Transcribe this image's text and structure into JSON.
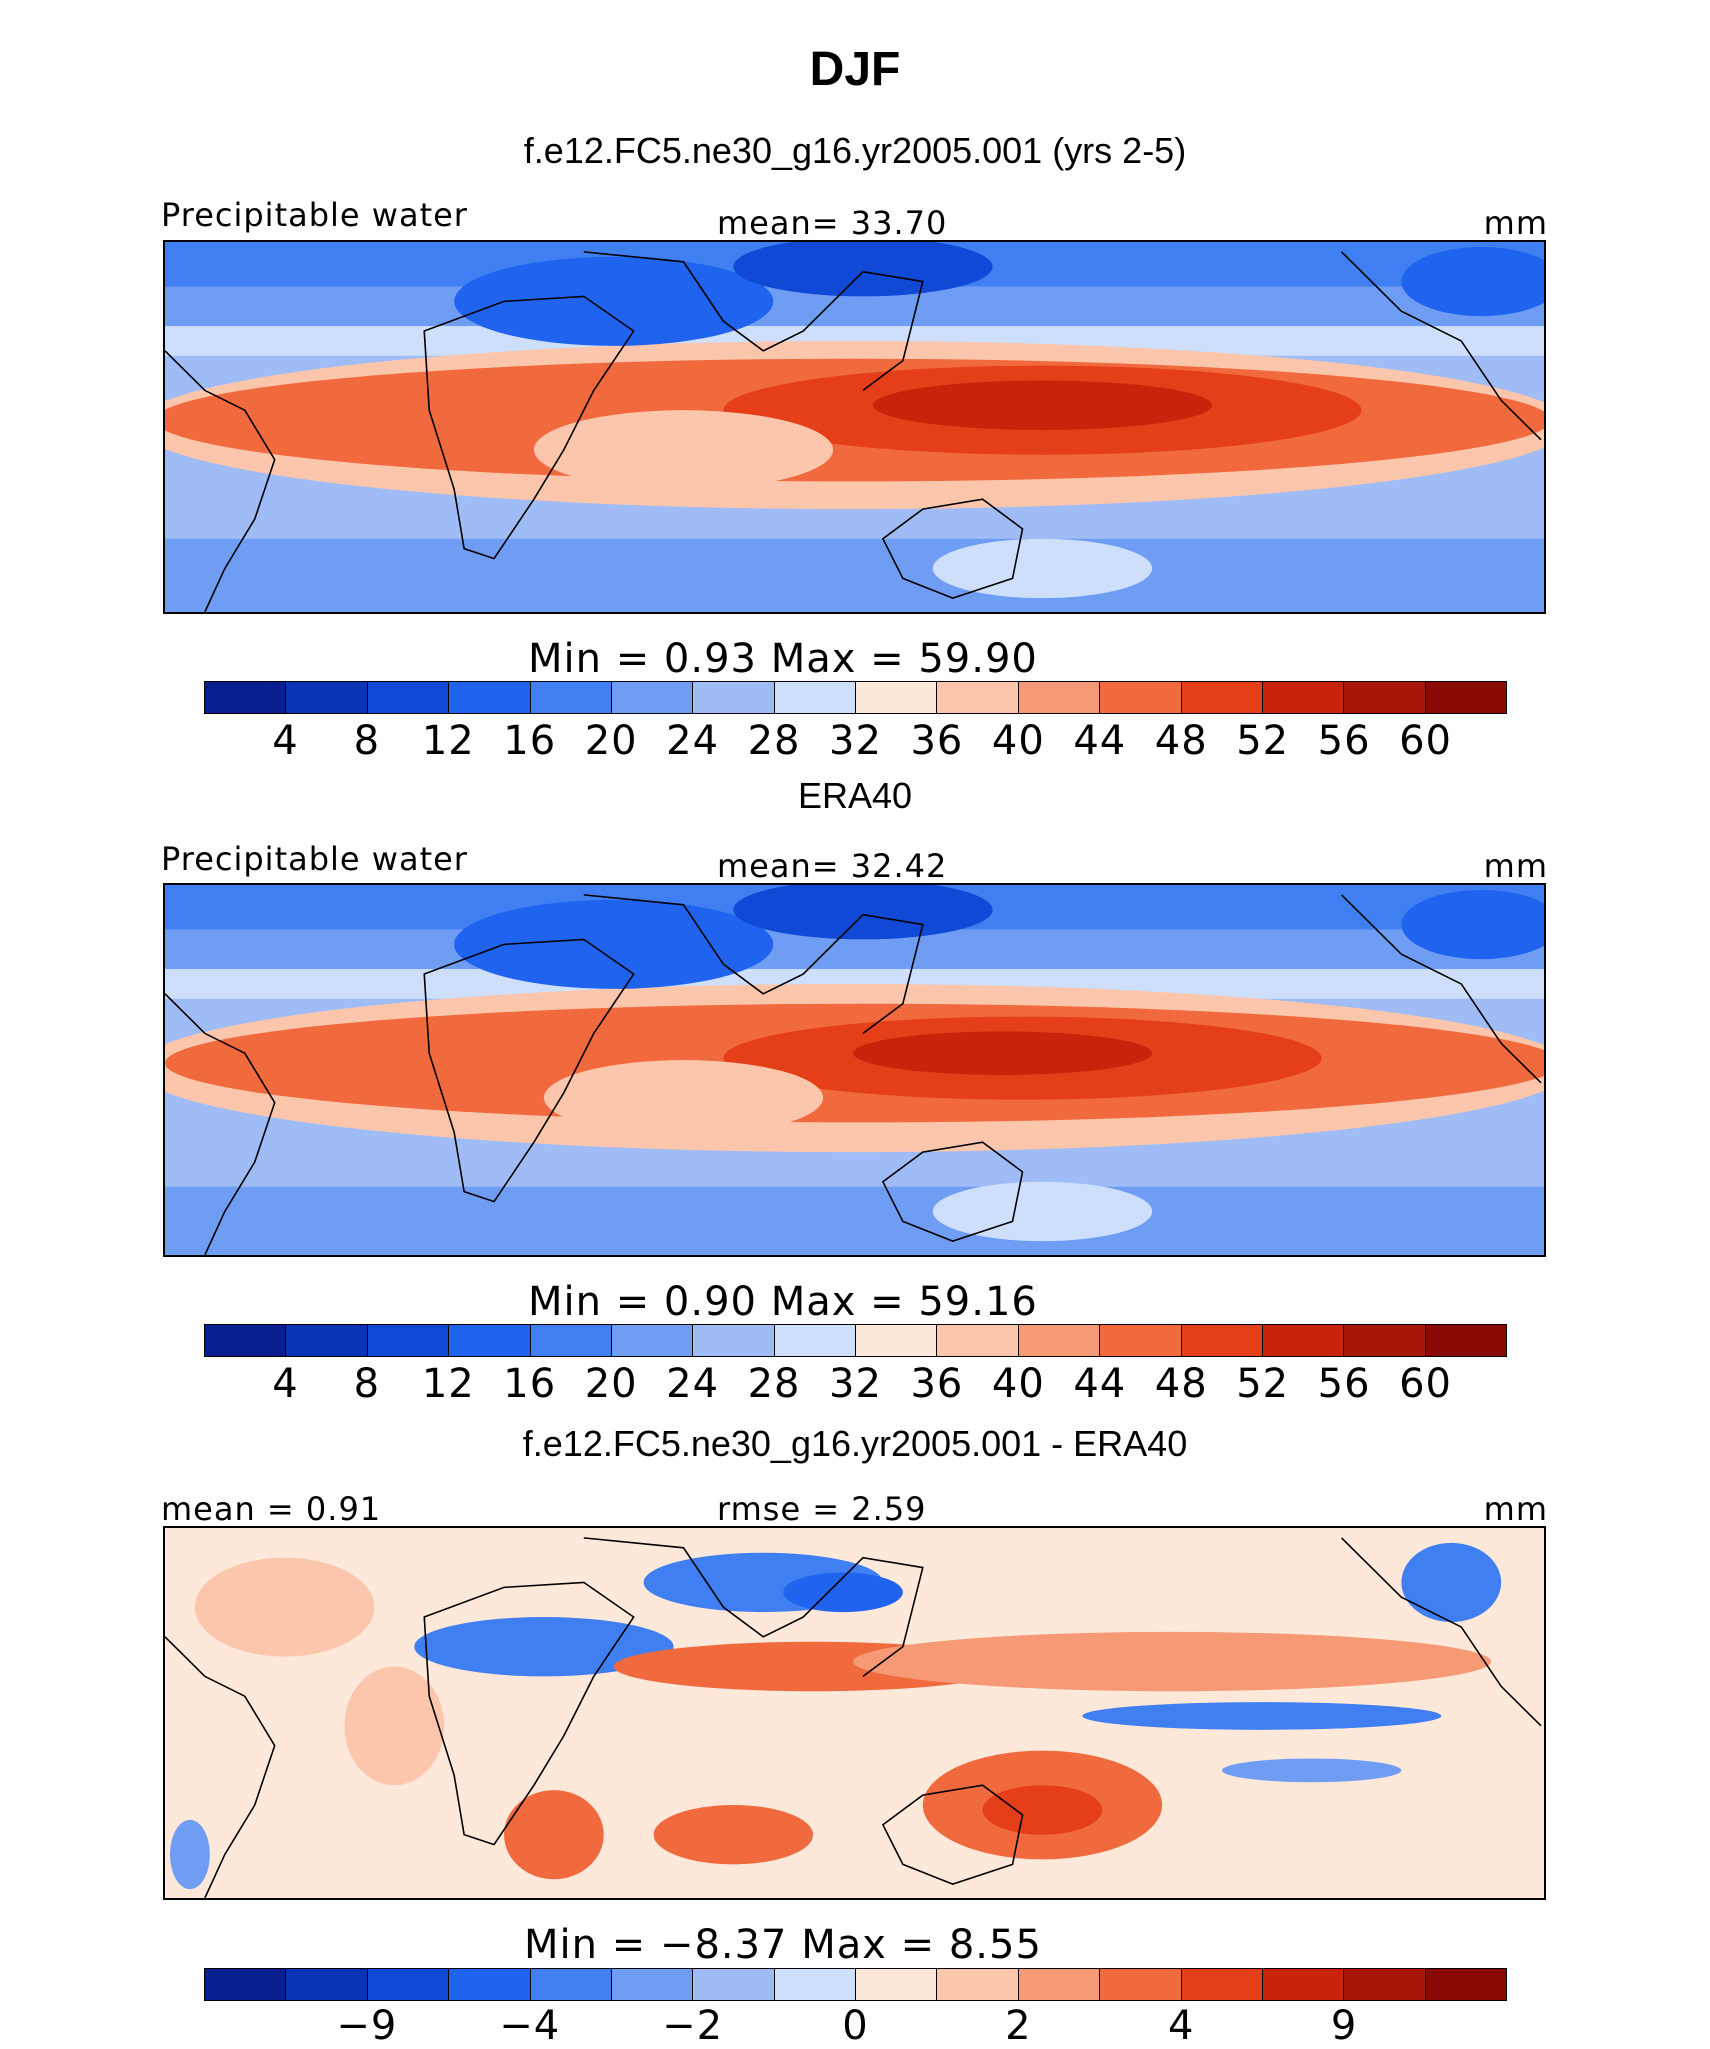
{
  "title": "DJF",
  "colors": {
    "abs_scale": [
      "#0a1f8f",
      "#0b33b6",
      "#0f49d6",
      "#1f63ef",
      "#3f7ff2",
      "#6f9df4",
      "#9fbcf6",
      "#cddffb",
      "#fde8da",
      "#fbc6ac",
      "#f69a76",
      "#f16a3e",
      "#e43f18",
      "#c9240b",
      "#a8160a",
      "#8a0b06"
    ],
    "diff_scale": [
      "#0a1f8f",
      "#0b33b6",
      "#0f49d6",
      "#1f63ef",
      "#3f7ff2",
      "#6f9df4",
      "#9fbcf6",
      "#cddffb",
      "#fde8da",
      "#fbc6ac",
      "#f69a76",
      "#f16a3e",
      "#e43f18",
      "#c9240b",
      "#a8160a",
      "#8a0b06"
    ]
  },
  "panels": [
    {
      "title": "f.e12.FC5.ne30_g16.yr2005.001 (yrs 2-5)",
      "variable": "Precipitable water",
      "stat_text": "mean=   33.70",
      "units": "mm",
      "minmax_text": "Min  =     0.93  Max  =    59.90",
      "colorbar_ticks": [
        "4",
        "8",
        "12",
        "16",
        "20",
        "24",
        "28",
        "32",
        "36",
        "40",
        "44",
        "48",
        "52",
        "56",
        "60"
      ]
    },
    {
      "title": "ERA40",
      "variable": "Precipitable water",
      "stat_text": "mean=   32.42",
      "units": "mm",
      "minmax_text": "Min  =     0.90  Max  =    59.16",
      "colorbar_ticks": [
        "4",
        "8",
        "12",
        "16",
        "20",
        "24",
        "28",
        "32",
        "36",
        "40",
        "44",
        "48",
        "52",
        "56",
        "60"
      ]
    },
    {
      "title": "f.e12.FC5.ne30_g16.yr2005.001 - ERA40",
      "stat_left": "mean  =    0.91",
      "stat_text": "rmse  =    2.59",
      "units": "mm",
      "minmax_text": "Min  =   −8.37  Max  =      8.55",
      "colorbar_ticks": [
        "−9",
        "−4",
        "−2",
        "0",
        "2",
        "4",
        "9"
      ]
    }
  ]
}
